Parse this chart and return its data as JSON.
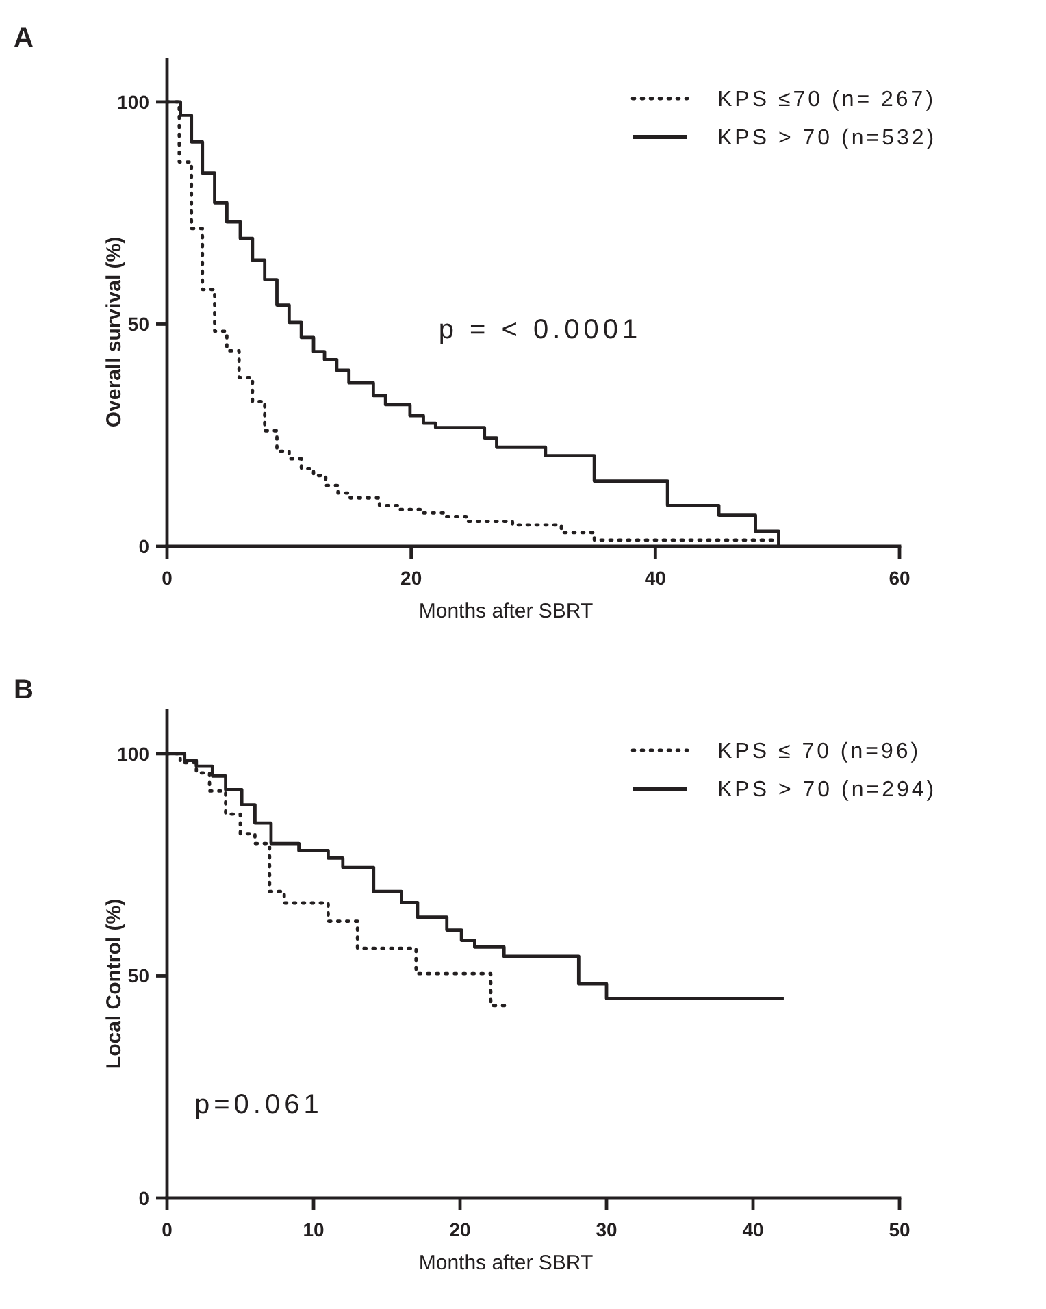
{
  "chart_data": [
    {
      "type": "step",
      "title": "A",
      "xlabel": "Months after SBRT",
      "ylabel": "Overall survival (%)",
      "xlim": [
        0,
        60
      ],
      "xticks": [
        0,
        20,
        40,
        60
      ],
      "ylim": [
        0,
        110
      ],
      "yticks": [
        0,
        50,
        100
      ],
      "legend": "top right",
      "grid": false,
      "annotations": [
        "p = < 0.0001"
      ],
      "series": [
        {
          "name": "KPS ≤70 (n= 267)",
          "color": "#231f20",
          "line_style": "dotted",
          "x": [
            0,
            1,
            2,
            2.9,
            3.9,
            4.9,
            5.9,
            7,
            8,
            9,
            10,
            11,
            12,
            13,
            14,
            15,
            17.4,
            19,
            21,
            22.7,
            24.5,
            28.3,
            32.3,
            35,
            49.6
          ],
          "values": [
            100,
            86.5,
            71.5,
            57.8,
            48.4,
            44,
            38,
            32.6,
            26,
            21.4,
            19.7,
            17.5,
            15.9,
            13.7,
            12,
            10.9,
            9.2,
            8.3,
            7.5,
            6.7,
            5.6,
            4.8,
            3.1,
            1.4,
            1.4
          ]
        },
        {
          "name": "KPS > 70 (n=532)",
          "color": "#231f20",
          "line_style": "solid",
          "x": [
            0,
            1.1,
            2,
            2.9,
            3.9,
            4.9,
            6,
            7,
            8,
            9,
            10,
            11,
            12,
            12.9,
            13.9,
            14.9,
            16.9,
            17.9,
            19.9,
            21,
            22,
            26,
            27,
            31,
            35,
            41,
            45.2,
            48.2,
            50.1
          ],
          "values": [
            100,
            97,
            91,
            84,
            77.3,
            73,
            69.3,
            64.4,
            60,
            54.3,
            50.4,
            47,
            43.8,
            42,
            39.6,
            36.8,
            33.9,
            31.9,
            29.4,
            27.7,
            26.7,
            24.4,
            22.3,
            20.4,
            14.7,
            9.2,
            7,
            3.4,
            0
          ]
        }
      ]
    },
    {
      "type": "step",
      "title": "B",
      "xlabel": "Months after SBRT",
      "ylabel": "Local Control (%)",
      "xlim": [
        0,
        50
      ],
      "xticks": [
        0,
        10,
        20,
        30,
        40,
        50
      ],
      "ylim": [
        0,
        110
      ],
      "yticks": [
        0,
        50,
        100
      ],
      "legend": "top right",
      "grid": false,
      "annotations": [
        "p=0.061"
      ],
      "series": [
        {
          "name": "KPS ≤ 70 (n=96)",
          "color": "#231f20",
          "line_style": "dotted",
          "x": [
            0,
            0.9,
            2,
            2.9,
            4,
            5,
            6,
            7,
            8,
            11,
            13,
            17,
            22.1,
            23.2
          ],
          "values": [
            100,
            98,
            95.7,
            91.6,
            86.4,
            82,
            79.8,
            69,
            66.4,
            62.3,
            56.2,
            50.5,
            43.3,
            43.3
          ]
        },
        {
          "name": "KPS > 70 (n=294)",
          "color": "#231f20",
          "line_style": "solid",
          "x": [
            0,
            1.2,
            2,
            3.1,
            4,
            5.1,
            6,
            7.1,
            9,
            11,
            12,
            14.1,
            16,
            17.1,
            19.1,
            20.1,
            21,
            23,
            28.1,
            30,
            42.1
          ],
          "values": [
            100,
            98.5,
            97.2,
            95,
            91.9,
            88.5,
            84.4,
            79.8,
            78.2,
            76.5,
            74.4,
            69,
            66.5,
            63.2,
            60.3,
            58,
            56.5,
            54.4,
            48.2,
            44.9,
            44.9
          ]
        }
      ]
    }
  ]
}
